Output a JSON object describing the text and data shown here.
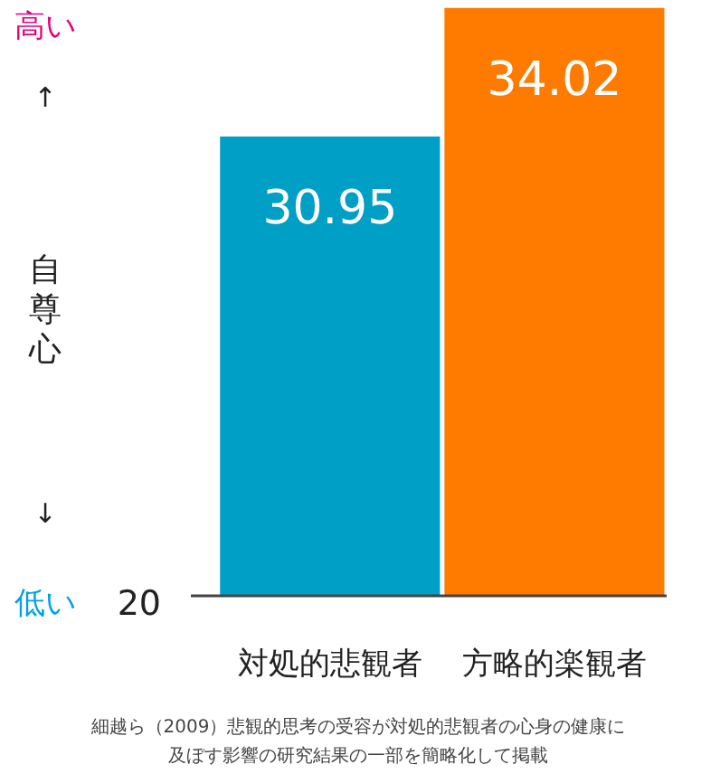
{
  "chart_data": {
    "type": "bar",
    "categories": [
      "対処的悲観者",
      "方略的楽観者"
    ],
    "values": [
      30.95,
      34.02
    ],
    "colors": [
      "#009fc6",
      "#ff7b00"
    ],
    "ylim": [
      20,
      34.1
    ],
    "ylabel": "自尊心",
    "data_labels": true,
    "annotations": [
      "高い",
      "↑",
      "↓",
      "低い",
      "20",
      "細越ら（2009）悲観的思考の受容が対処的悲観者の心身の健康に及ぼす影響の研究結果の一部を簡略化して掲載"
    ]
  }
}
